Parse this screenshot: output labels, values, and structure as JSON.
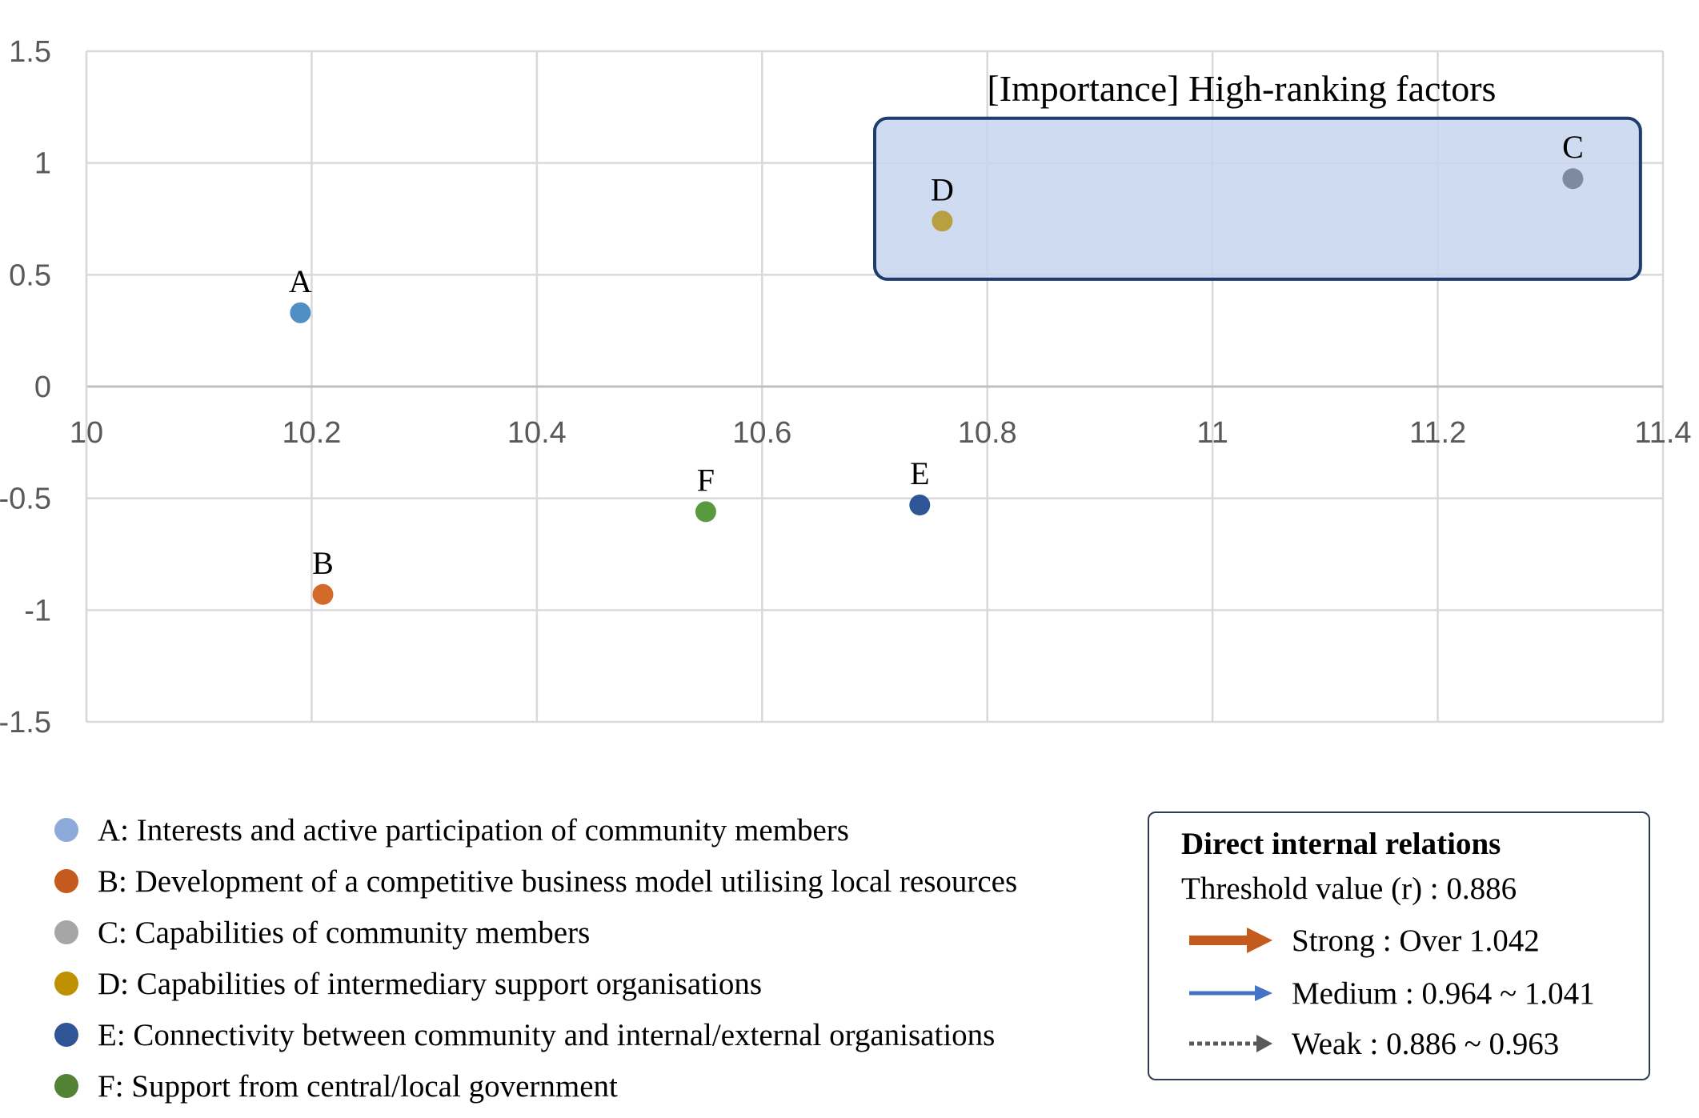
{
  "chart_data": {
    "type": "scatter",
    "title": "",
    "xlabel": "",
    "ylabel": "",
    "xlim": [
      10,
      11.4
    ],
    "ylim": [
      -1.5,
      1.5
    ],
    "x_ticks": [
      "10",
      "10.2",
      "10.4",
      "10.6",
      "10.8",
      "11",
      "11.2",
      "11.4"
    ],
    "y_ticks": [
      "1.5",
      "1",
      "0.5",
      "0",
      "-0.5",
      "-1",
      "-1.5"
    ],
    "grid": true,
    "points": [
      {
        "label": "A",
        "x": 10.19,
        "y": 0.33,
        "color": "#4f8fc6"
      },
      {
        "label": "B",
        "x": 10.21,
        "y": -0.93,
        "color": "#d46a2a"
      },
      {
        "label": "C",
        "x": 11.32,
        "y": 0.93,
        "color": "#7f8aa0"
      },
      {
        "label": "D",
        "x": 10.76,
        "y": 0.74,
        "color": "#b8a040"
      },
      {
        "label": "E",
        "x": 10.74,
        "y": -0.53,
        "color": "#2f5597"
      },
      {
        "label": "F",
        "x": 10.55,
        "y": -0.56,
        "color": "#5a9a3e"
      }
    ],
    "annotation": {
      "title": "[Importance] High-ranking factors",
      "x_range": [
        10.7,
        11.38
      ],
      "y_range": [
        0.48,
        1.2
      ],
      "fill": "#c5d5ee",
      "stroke": "#1f3c6e"
    }
  },
  "legend": {
    "items": [
      {
        "text": "A: Interests and active participation of community members",
        "color": "#8eaadb"
      },
      {
        "text": "B: Development of a competitive business model utilising local resources",
        "color": "#c55a1e"
      },
      {
        "text": "C: Capabilities of community members",
        "color": "#a6a6a6"
      },
      {
        "text": "D: Capabilities of intermediary support organisations",
        "color": "#bf9000"
      },
      {
        "text": "E: Connectivity between community and internal/external organisations",
        "color": "#2f5597"
      },
      {
        "text": "F: Support from central/local government",
        "color": "#548235"
      }
    ]
  },
  "relations": {
    "title": "Direct internal relations",
    "threshold": "Threshold value (r) : 0.886",
    "strong": {
      "text": "Strong : Over 1.042",
      "color": "#c55a1e"
    },
    "medium": {
      "text": "Medium : 0.964 ~ 1.041",
      "color": "#4472c4"
    },
    "weak": {
      "text": "Weak : 0.886 ~ 0.963",
      "color": "#595959"
    }
  }
}
